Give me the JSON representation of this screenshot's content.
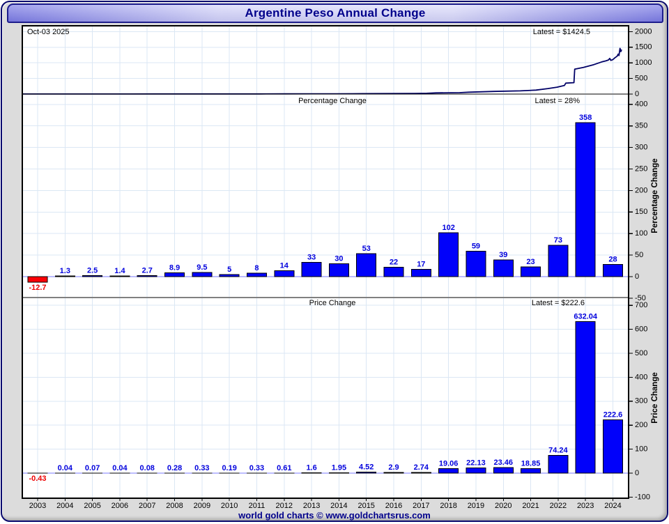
{
  "window": {
    "title": "Argentine Peso Annual Change"
  },
  "footer": {
    "text": "world gold charts © www.goldchartsrus.com"
  },
  "colors": {
    "plot_bg": "#ffffff",
    "grid": "#dbe7f4",
    "zero_line": "#7b7bff",
    "axis_border": "#000000",
    "bar_blue": "#0101fa",
    "bar_red": "#fb0006",
    "label_blue": "#0000dd",
    "label_red": "#ee0000",
    "price_line": "#000066",
    "axis_text": "#000000"
  },
  "x_axis": {
    "years": [
      "2003",
      "2004",
      "2005",
      "2006",
      "2007",
      "2008",
      "2009",
      "2010",
      "2011",
      "2012",
      "2013",
      "2014",
      "2015",
      "2016",
      "2017",
      "2018",
      "2019",
      "2020",
      "2021",
      "2022",
      "2023",
      "2024"
    ]
  },
  "chart_data": [
    {
      "id": "price-history",
      "type": "line",
      "date_label": "Oct-03  2025",
      "latest_label": "Latest = $1424.5",
      "ylim": [
        0,
        2190
      ],
      "yticks": [
        0,
        500,
        1000,
        1500,
        2000
      ],
      "x_range": [
        2003,
        2025.75
      ],
      "points": [
        [
          2003.0,
          3.2
        ],
        [
          2003.5,
          2.95
        ],
        [
          2004,
          2.94
        ],
        [
          2005,
          3.0
        ],
        [
          2006,
          3.06
        ],
        [
          2007,
          3.13
        ],
        [
          2008,
          3.4
        ],
        [
          2009,
          3.74
        ],
        [
          2010,
          3.93
        ],
        [
          2011,
          4.26
        ],
        [
          2012,
          4.87
        ],
        [
          2013,
          6.5
        ],
        [
          2014,
          8.4
        ],
        [
          2014.9,
          9.6
        ],
        [
          2015.95,
          13.2
        ],
        [
          2016.9,
          15.9
        ],
        [
          2017.9,
          18.6
        ],
        [
          2018.35,
          25
        ],
        [
          2018.7,
          38
        ],
        [
          2019.6,
          45
        ],
        [
          2019.95,
          60
        ],
        [
          2020.9,
          84
        ],
        [
          2021.9,
          102
        ],
        [
          2022.5,
          128
        ],
        [
          2022.95,
          177
        ],
        [
          2023.3,
          220
        ],
        [
          2023.58,
          277
        ],
        [
          2023.63,
          350
        ],
        [
          2023.94,
          366
        ],
        [
          2023.97,
          800
        ],
        [
          2024.3,
          855
        ],
        [
          2024.7,
          945
        ],
        [
          2025.0,
          1032
        ],
        [
          2025.15,
          1062
        ],
        [
          2025.25,
          1092
        ],
        [
          2025.3,
          1142
        ],
        [
          2025.34,
          1078
        ],
        [
          2025.42,
          1105
        ],
        [
          2025.5,
          1165
        ],
        [
          2025.58,
          1215
        ],
        [
          2025.62,
          1278
        ],
        [
          2025.65,
          1235
        ],
        [
          2025.69,
          1465
        ],
        [
          2025.72,
          1362
        ],
        [
          2025.75,
          1424.5
        ]
      ]
    },
    {
      "id": "percentage-change",
      "type": "bar",
      "inner_title": "Percentage Change",
      "latest_label": "Latest = 28%",
      "ylabel": "Percentage Change",
      "ylim": [
        -50,
        424
      ],
      "yticks": [
        -50,
        0,
        50,
        100,
        150,
        200,
        250,
        300,
        350,
        400
      ],
      "categories": [
        "2003",
        "2004",
        "2005",
        "2006",
        "2007",
        "2008",
        "2009",
        "2010",
        "2011",
        "2012",
        "2013",
        "2014",
        "2015",
        "2016",
        "2017",
        "2018",
        "2019",
        "2020",
        "2021",
        "2022",
        "2023",
        "2024"
      ],
      "values": [
        -12.7,
        1.3,
        2.5,
        1.4,
        2.7,
        8.9,
        9.5,
        5,
        8,
        14,
        33,
        30,
        53,
        22,
        17,
        102,
        59,
        39,
        23,
        73,
        358,
        28
      ]
    },
    {
      "id": "price-change",
      "type": "bar",
      "inner_title": "Price Change",
      "latest_label": "Latest = $222.6",
      "ylabel": "Price Change",
      "ylim": [
        -105,
        732
      ],
      "yticks": [
        -100,
        0,
        100,
        200,
        300,
        400,
        500,
        600,
        700
      ],
      "categories": [
        "2003",
        "2004",
        "2005",
        "2006",
        "2007",
        "2008",
        "2009",
        "2010",
        "2011",
        "2012",
        "2013",
        "2014",
        "2015",
        "2016",
        "2017",
        "2018",
        "2019",
        "2020",
        "2021",
        "2022",
        "2023",
        "2024"
      ],
      "values": [
        -0.43,
        0.04,
        0.07,
        0.04,
        0.08,
        0.28,
        0.33,
        0.19,
        0.33,
        0.61,
        1.6,
        1.95,
        4.52,
        2.9,
        2.74,
        19.06,
        22.13,
        23.46,
        18.85,
        74.24,
        632.04,
        222.6
      ]
    }
  ]
}
